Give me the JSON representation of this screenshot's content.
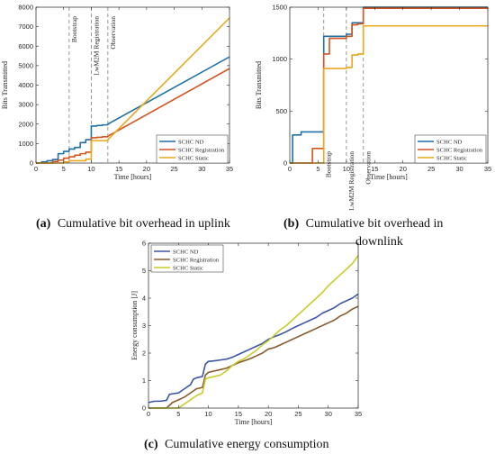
{
  "chart_data": [
    {
      "id": "a",
      "type": "line",
      "caption_label": "(a)",
      "caption_text": "Cumulative bit overhead in uplink",
      "xlabel": "Time [hours]",
      "ylabel": "Bits Transmitted",
      "xlim": [
        0,
        35
      ],
      "ylim": [
        0,
        8000
      ],
      "xticks": [
        0,
        5,
        10,
        15,
        20,
        25,
        30,
        35
      ],
      "yticks": [
        0,
        1000,
        2000,
        3000,
        4000,
        5000,
        6000,
        7000,
        8000
      ],
      "grid": false,
      "legend_position": "lower-right",
      "annotations": [
        {
          "x": 6,
          "label": "Bootstrap"
        },
        {
          "x": 10,
          "label": "LwM2M Registration"
        },
        {
          "x": 13,
          "label": "Observation"
        }
      ],
      "series": [
        {
          "name": "SCHC ND",
          "color": "#1f6fa8",
          "x": [
            0,
            1,
            1,
            2,
            2,
            3,
            3,
            4,
            4,
            5,
            5,
            6,
            6,
            7,
            7,
            8,
            8,
            9,
            9,
            10,
            10,
            11,
            11,
            12,
            12,
            13,
            13,
            35
          ],
          "y": [
            0,
            0,
            60,
            60,
            120,
            120,
            180,
            180,
            480,
            480,
            600,
            600,
            720,
            720,
            800,
            800,
            1050,
            1050,
            1200,
            1200,
            1900,
            1900,
            1930,
            1930,
            1960,
            1960,
            2000,
            5450
          ]
        },
        {
          "name": "SCHC Registration",
          "color": "#d4541f",
          "x": [
            0,
            3,
            3,
            4,
            4,
            5,
            5,
            6,
            6,
            7,
            7,
            8,
            8,
            9,
            9,
            10,
            10,
            11,
            11,
            12,
            12,
            13,
            13,
            35
          ],
          "y": [
            0,
            0,
            80,
            80,
            150,
            150,
            250,
            250,
            320,
            320,
            400,
            400,
            480,
            480,
            560,
            560,
            1300,
            1300,
            1320,
            1320,
            1350,
            1350,
            1380,
            4850
          ]
        },
        {
          "name": "SCHC Static",
          "color": "#e8a81c",
          "x": [
            0,
            5,
            5,
            6,
            6,
            9,
            9,
            10,
            10,
            13,
            13,
            35
          ],
          "y": [
            0,
            0,
            60,
            60,
            120,
            120,
            200,
            200,
            1150,
            1150,
            1200,
            7450
          ]
        }
      ]
    },
    {
      "id": "b",
      "type": "line",
      "caption_label": "(b)",
      "caption_text": "Cumulative bit overhead in downlink",
      "caption_line1": "Cumulative bit overhead in",
      "caption_line2": "downlink",
      "xlabel": "Time [hours]",
      "ylabel": "Bits Transmitted",
      "xlim": [
        0,
        35
      ],
      "ylim": [
        0,
        1500
      ],
      "xticks": [
        0,
        5,
        10,
        15,
        20,
        25,
        30,
        35
      ],
      "yticks": [
        0,
        500,
        1000,
        1500
      ],
      "grid": false,
      "legend_position": "lower-right",
      "annotations": [
        {
          "x": 6,
          "label": "Bootstrap"
        },
        {
          "x": 10,
          "label": "LwM2M Registration"
        },
        {
          "x": 13,
          "label": "Observation"
        }
      ],
      "series": [
        {
          "name": "SCHC ND",
          "color": "#1f6fa8",
          "x": [
            0,
            0.5,
            0.5,
            2,
            2,
            3,
            3,
            6,
            6,
            7,
            7,
            10,
            10,
            11,
            11,
            12,
            12,
            13,
            13,
            35
          ],
          "y": [
            0,
            0,
            270,
            270,
            300,
            300,
            300,
            300,
            1220,
            1220,
            1220,
            1220,
            1240,
            1240,
            1350,
            1350,
            1350,
            1350,
            1500,
            1500
          ]
        },
        {
          "name": "SCHC Registration",
          "color": "#d4541f",
          "x": [
            0,
            4,
            4,
            5,
            5,
            6,
            6,
            7,
            7,
            10,
            10,
            11,
            11,
            12,
            12,
            13,
            13,
            35
          ],
          "y": [
            0,
            0,
            140,
            140,
            140,
            140,
            1050,
            1050,
            1200,
            1200,
            1220,
            1220,
            1330,
            1330,
            1340,
            1340,
            1490,
            1490
          ]
        },
        {
          "name": "SCHC Static",
          "color": "#e8a81c",
          "x": [
            0,
            6,
            6,
            7,
            7,
            10,
            10,
            11,
            11,
            12,
            12,
            13,
            13,
            35
          ],
          "y": [
            0,
            0,
            910,
            910,
            910,
            910,
            920,
            920,
            1040,
            1040,
            1050,
            1050,
            1320,
            1320
          ]
        }
      ]
    },
    {
      "id": "c",
      "type": "line",
      "caption_label": "(c)",
      "caption_text": "Cumulative energy consumption",
      "xlabel": "Time [hours]",
      "ylabel": "Energy consumption [J]",
      "xlim": [
        0,
        35
      ],
      "ylim": [
        0,
        6
      ],
      "xticks": [
        0,
        5,
        10,
        15,
        20,
        25,
        30,
        35
      ],
      "yticks": [
        0,
        1,
        2,
        3,
        4,
        5,
        6
      ],
      "grid": false,
      "legend_position": "top-left",
      "annotations": [],
      "series": [
        {
          "name": "SCHC ND",
          "color": "#3b55a6",
          "x": [
            0,
            1,
            2,
            3,
            3.5,
            4,
            5,
            6,
            7,
            7.5,
            8,
            9,
            9.5,
            10,
            11,
            12,
            13,
            14,
            15,
            16,
            17,
            18,
            19,
            20,
            21,
            22,
            23,
            24,
            25,
            26,
            27,
            28,
            29,
            30,
            31,
            32,
            33,
            34,
            35
          ],
          "y": [
            0.2,
            0.25,
            0.25,
            0.28,
            0.5,
            0.52,
            0.55,
            0.7,
            0.85,
            1.05,
            1.1,
            1.15,
            1.6,
            1.7,
            1.72,
            1.75,
            1.78,
            1.85,
            1.95,
            2.05,
            2.15,
            2.25,
            2.35,
            2.5,
            2.6,
            2.68,
            2.78,
            2.9,
            3.0,
            3.1,
            3.2,
            3.3,
            3.45,
            3.55,
            3.65,
            3.8,
            3.9,
            4.0,
            4.15
          ]
        },
        {
          "name": "SCHC Registration",
          "color": "#8a5a2b",
          "x": [
            0,
            3,
            4,
            5,
            6,
            7,
            8,
            9,
            9.5,
            10,
            11,
            12,
            13,
            14,
            15,
            16,
            17,
            18,
            19,
            20,
            21,
            22,
            23,
            24,
            25,
            26,
            27,
            28,
            29,
            30,
            31,
            32,
            33,
            34,
            35
          ],
          "y": [
            0,
            0,
            0.2,
            0.3,
            0.4,
            0.55,
            0.7,
            0.75,
            1.2,
            1.3,
            1.35,
            1.4,
            1.45,
            1.55,
            1.65,
            1.72,
            1.8,
            1.9,
            2.0,
            2.15,
            2.2,
            2.3,
            2.4,
            2.5,
            2.6,
            2.7,
            2.8,
            2.9,
            3.0,
            3.1,
            3.2,
            3.35,
            3.45,
            3.6,
            3.7
          ]
        },
        {
          "name": "SCHC Static",
          "color": "#c7cc2a",
          "x": [
            0,
            5,
            6,
            7,
            8,
            9,
            9.5,
            10,
            11,
            12,
            13,
            14,
            15,
            16,
            17,
            18,
            19,
            20,
            21,
            22,
            23,
            24,
            25,
            26,
            27,
            28,
            29,
            30,
            31,
            32,
            33,
            34,
            35
          ],
          "y": [
            0,
            0,
            0.15,
            0.3,
            0.45,
            0.55,
            1.05,
            1.1,
            1.15,
            1.2,
            1.35,
            1.55,
            1.7,
            1.8,
            1.95,
            2.1,
            2.3,
            2.45,
            2.65,
            2.85,
            3.0,
            3.2,
            3.4,
            3.6,
            3.8,
            4.0,
            4.2,
            4.45,
            4.65,
            4.85,
            5.05,
            5.25,
            5.55
          ]
        }
      ]
    }
  ]
}
